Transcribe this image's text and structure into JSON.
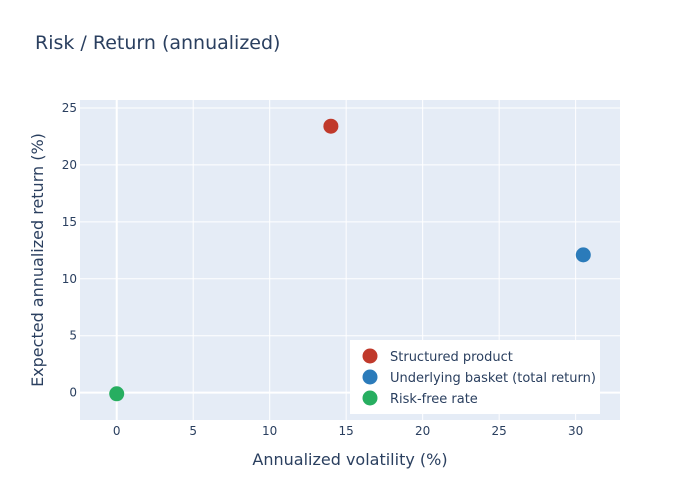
{
  "chart_data": {
    "type": "scatter",
    "title": "Risk / Return (annualized)",
    "xlabel": "Annualized volatility (%)",
    "ylabel": "Expected annualized return (%)",
    "xlim": [
      -2.4,
      32.9
    ],
    "ylim": [
      -2.4,
      25.7
    ],
    "xticks": [
      0,
      5,
      10,
      15,
      20,
      25,
      30
    ],
    "yticks": [
      0,
      5,
      10,
      15,
      20,
      25
    ],
    "grid": true,
    "legend_position": "bottom-right",
    "series": [
      {
        "name": "Structured product",
        "color": "#c0392b",
        "x": [
          14.0
        ],
        "y": [
          23.4
        ]
      },
      {
        "name": "Underlying basket (total return)",
        "color": "#2b7bba",
        "x": [
          30.5
        ],
        "y": [
          12.1
        ]
      },
      {
        "name": "Risk-free rate",
        "color": "#27ae60",
        "x": [
          0.0
        ],
        "y": [
          -0.1
        ]
      }
    ]
  }
}
